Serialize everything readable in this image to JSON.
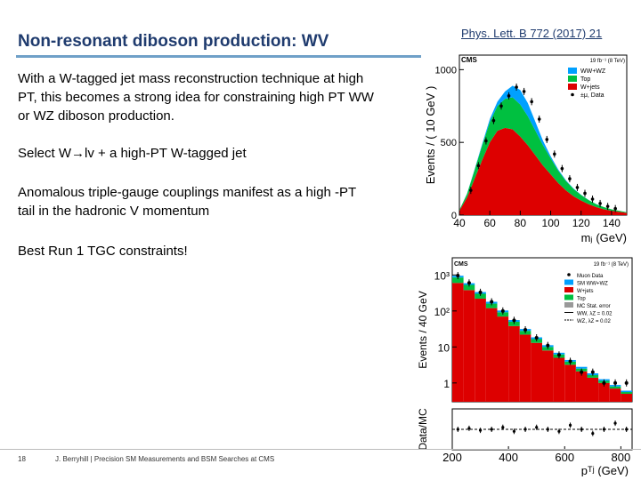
{
  "slide": {
    "title": "Non-resonant diboson production:  WV",
    "reference": "Phys. Lett. B 772 (2017) 21",
    "paragraphs": [
      "With a W-tagged jet mass reconstruction technique at high PT, this becomes a strong idea for constraining high PT WW or WZ diboson production.",
      "Select W→lv + a high-PT W-tagged jet",
      "Anomalous triple-gauge couplings manifest as a high -PT tail in the hadronic V momentum",
      "Best Run 1 TGC constraints!"
    ],
    "slide_number": "18",
    "footer": "J. Berryhill | Precision SM Measurements and BSM Searches at CMS"
  },
  "chart_data": [
    {
      "type": "area",
      "cms_label": "CMS",
      "lumi": "19 fb⁻¹ (8 TeV)",
      "xlabel": "mⱼ (GeV)",
      "ylabel": "Events / ( 10 GeV )",
      "xticks": [
        "40",
        "60",
        "80",
        "100",
        "120",
        "140"
      ],
      "yticks": [
        "0",
        "500",
        "1000"
      ],
      "xlim": [
        40,
        150
      ],
      "ylim": [
        0,
        1100
      ],
      "x": [
        40,
        45,
        50,
        55,
        60,
        65,
        70,
        75,
        80,
        85,
        90,
        95,
        100,
        105,
        110,
        115,
        120,
        125,
        130,
        135,
        140,
        145,
        150
      ],
      "series": [
        {
          "name": "W+jets",
          "color": "#dd0000",
          "values": [
            30,
            120,
            250,
            380,
            500,
            580,
            600,
            590,
            540,
            480,
            410,
            340,
            280,
            220,
            170,
            130,
            100,
            75,
            55,
            40,
            30,
            22,
            15
          ]
        },
        {
          "name": "Top",
          "color": "#00c040",
          "values": [
            5,
            25,
            60,
            100,
            140,
            170,
            200,
            220,
            220,
            200,
            170,
            140,
            110,
            85,
            65,
            50,
            38,
            28,
            20,
            15,
            10,
            8,
            5
          ]
        },
        {
          "name": "WW+WZ",
          "color": "#00a0ff",
          "values": [
            0,
            2,
            5,
            10,
            20,
            30,
            50,
            80,
            100,
            90,
            60,
            30,
            15,
            8,
            5,
            3,
            2,
            1,
            1,
            0,
            0,
            0,
            0
          ]
        }
      ],
      "data_points": {
        "name": "±μ, Data",
        "x": [
          47.5,
          52.5,
          57.5,
          62.5,
          67.5,
          72.5,
          77.5,
          82.5,
          87.5,
          92.5,
          97.5,
          102.5,
          107.5,
          112.5,
          117.5,
          122.5,
          127.5,
          132.5,
          137.5,
          142.5
        ],
        "y": [
          170,
          340,
          510,
          650,
          750,
          820,
          880,
          850,
          780,
          660,
          520,
          420,
          320,
          250,
          190,
          150,
          110,
          80,
          60,
          45
        ]
      },
      "legend_position": "top-right"
    },
    {
      "type": "bar",
      "cms_label": "CMS",
      "lumi": "19 fb⁻¹ (8 TeV)",
      "xlabel": "pᵀʲ (GeV)",
      "ylabel": "Events / 40 GeV",
      "ratio_ylabel": "Data/MC",
      "log_scale": true,
      "yticks": [
        "1",
        "10",
        "10²",
        "10³"
      ],
      "xticks": [
        "200",
        "400",
        "600",
        "800"
      ],
      "xlim": [
        200,
        840
      ],
      "x_bins": [
        200,
        240,
        280,
        320,
        360,
        400,
        440,
        480,
        520,
        560,
        600,
        640,
        680,
        720,
        760,
        800,
        840
      ],
      "series": [
        {
          "name": "W+jets",
          "color": "#dd0000",
          "values": [
            600,
            380,
            220,
            120,
            70,
            38,
            22,
            13,
            8,
            5,
            3.2,
            2.1,
            1.4,
            1.0,
            0.7,
            0.5
          ]
        },
        {
          "name": "Top",
          "color": "#00c040",
          "values": [
            250,
            150,
            80,
            40,
            22,
            12,
            6,
            3.5,
            2,
            1.2,
            0.7,
            0.4,
            0.25,
            0.15,
            0.1,
            0.06
          ]
        },
        {
          "name": "SM WW+WZ",
          "color": "#00a0ff",
          "values": [
            100,
            60,
            35,
            20,
            11,
            6,
            3.5,
            2,
            1.2,
            0.7,
            0.45,
            0.3,
            0.2,
            0.12,
            0.08,
            0.05
          ]
        }
      ],
      "data_points": {
        "name": "Muon Data",
        "x": [
          220,
          260,
          300,
          340,
          380,
          420,
          460,
          500,
          540,
          580,
          620,
          660,
          700,
          740,
          780,
          820
        ],
        "y": [
          960,
          600,
          330,
          180,
          100,
          55,
          30,
          18,
          11,
          6,
          4,
          2,
          2,
          1,
          1,
          1
        ]
      },
      "ratio": {
        "x": [
          220,
          260,
          300,
          340,
          380,
          420,
          460,
          500,
          540,
          580,
          620,
          660,
          700,
          740,
          780,
          820
        ],
        "y": [
          1.0,
          1.05,
          0.95,
          1.0,
          1.1,
          0.9,
          1.0,
          1.1,
          1.0,
          0.9,
          1.2,
          1.0,
          0.8,
          1.0,
          1.3,
          1.0
        ]
      },
      "legend": [
        "Muon Data",
        "SM WW+WZ",
        "W+jets",
        "Top",
        "MC Stat. error",
        "WW, λZ = 0.02",
        "WZ, λZ = 0.02"
      ],
      "legend_position": "top-right"
    }
  ]
}
